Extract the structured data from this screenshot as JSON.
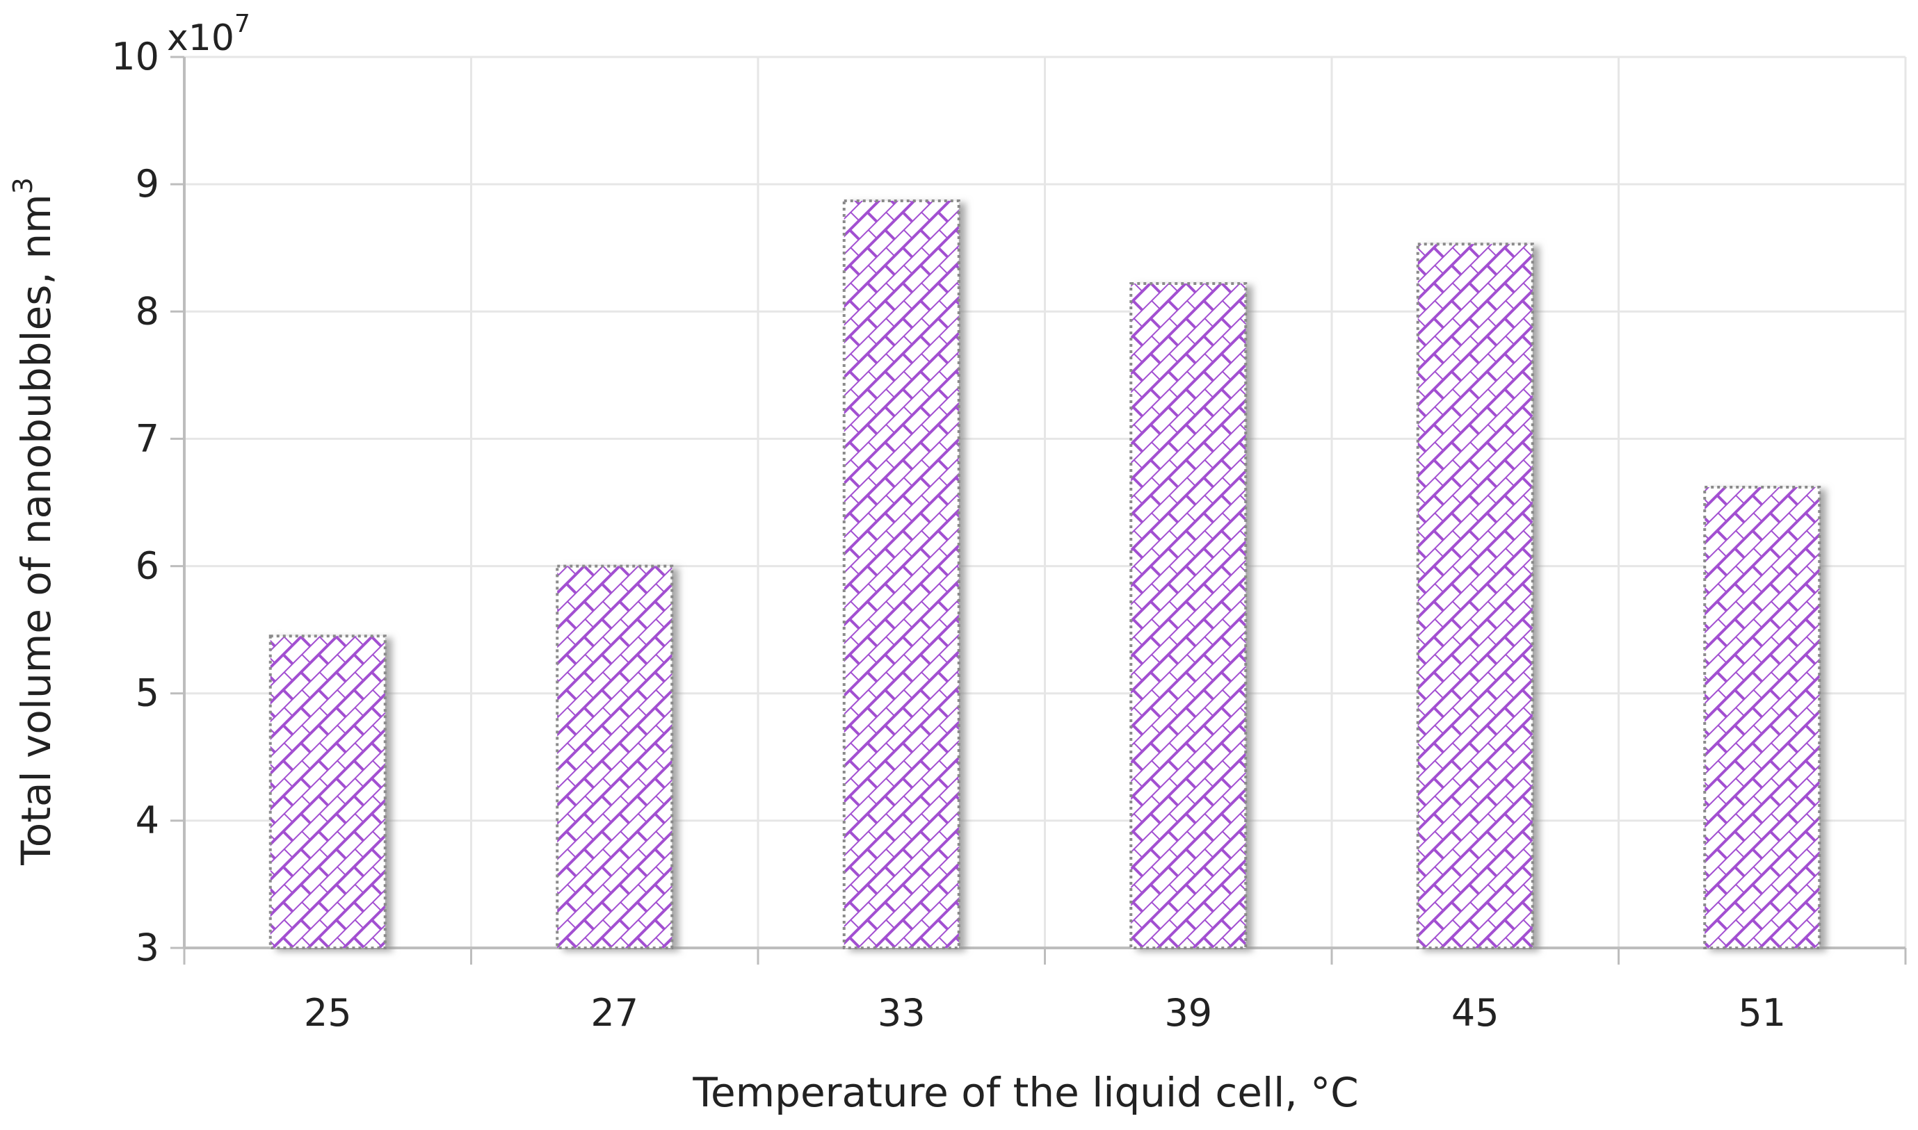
{
  "chart_data": {
    "type": "bar",
    "categories": [
      "25",
      "27",
      "33",
      "39",
      "45",
      "51"
    ],
    "values": [
      5.45,
      6.0,
      8.87,
      8.22,
      8.53,
      6.62
    ],
    "ylim": [
      3,
      10
    ],
    "yticks": [
      "3",
      "4",
      "5",
      "6",
      "7",
      "8",
      "9",
      "10"
    ],
    "y_multiplier_base": "x10",
    "y_multiplier_exp": "7",
    "xlabel": "Temperature of the liquid cell,   °C",
    "ylabel_text": "Total volume of nanobubbles, nm",
    "ylabel_superscript": "3",
    "grid": true,
    "colors": {
      "bar_pattern": "#a24fd1",
      "bar_border": "#8a8a8a",
      "grid": "#e6e6e6",
      "axis": "#bdbdbd",
      "bar_shadow": "#9a9a9a"
    }
  }
}
